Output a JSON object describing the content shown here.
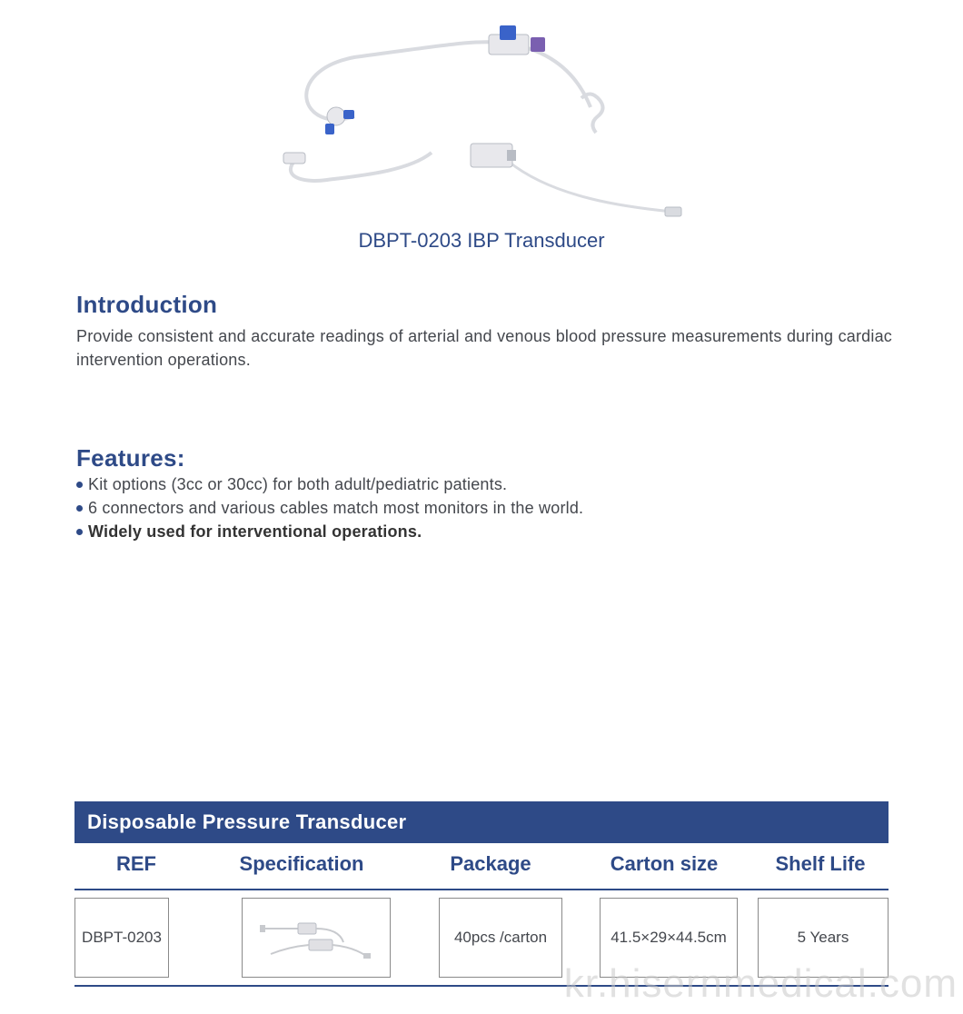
{
  "product": {
    "title": "DBPT-0203 IBP Transducer",
    "image_colors": {
      "tube": "#d9dbe0",
      "connector_blue": "#3a63c9",
      "connector_purple": "#7a5fb0",
      "connector_white": "#e8e8ec",
      "body_outline": "#b8bcc4"
    }
  },
  "introduction": {
    "heading": "Introduction",
    "text": "Provide consistent and accurate readings of arterial and venous blood pressure measurements during cardiac intervention operations."
  },
  "features": {
    "heading": "Features:",
    "items": [
      {
        "text": "Kit options (3cc or 30cc) for both adult/pediatric patients.",
        "bold": false
      },
      {
        "text": "6 connectors and various cables match most monitors in the world.",
        "bold": false
      },
      {
        "text": "Widely used for interventional operations.",
        "bold": true
      }
    ],
    "bullet_color": "#2e4a87"
  },
  "table": {
    "title": "Disposable Pressure Transducer",
    "columns": [
      "REF",
      "Specification",
      "Package",
      "Carton  size",
      "Shelf Life"
    ],
    "row": {
      "ref": "DBPT-0203",
      "package": "40pcs /carton",
      "carton_size": "41.5×29×44.5cm",
      "shelf_life": "5 Years"
    },
    "header_bg": "#2e4a87",
    "header_text_color": "#ffffff",
    "column_text_color": "#2e4a87",
    "cell_border_color": "#8a8a8a",
    "divider_color": "#2e4a87"
  },
  "watermark": "kr.hisernmedical.com",
  "colors": {
    "heading": "#2e4a87",
    "body_text": "#44474d",
    "background": "#ffffff"
  },
  "typography": {
    "heading_fontsize": 26,
    "body_fontsize": 18,
    "title_fontsize": 22,
    "table_header_fontsize": 22,
    "cell_fontsize": 17
  }
}
